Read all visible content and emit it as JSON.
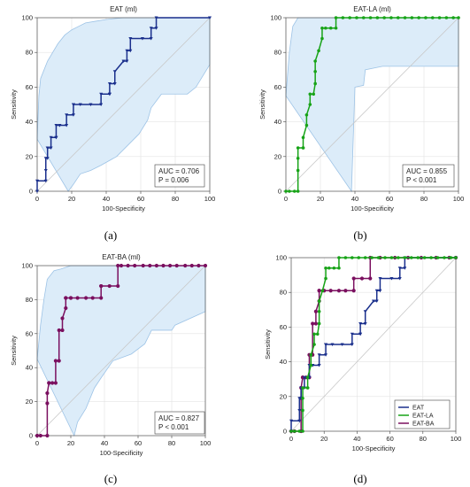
{
  "colors": {
    "eat": "#1a2f8c",
    "eat_la": "#17a317",
    "eat_ba": "#7a0f5f",
    "ci_fill": "#dcecf9",
    "ci_stroke": "#9dc3e6",
    "grid": "#e3e3e3",
    "diagonal": "#c8c8c8"
  },
  "chart_data": [
    {
      "type": "line",
      "panel_label": "(a)",
      "title": "EAT (ml)",
      "xlabel": "100-Specificity",
      "ylabel": "Sensitivity",
      "xlim": [
        0,
        100
      ],
      "ylim": [
        0,
        100
      ],
      "x_ticks": [
        "0",
        "20",
        "40",
        "60",
        "80",
        "100"
      ],
      "y_ticks": [
        "0",
        "20",
        "40",
        "60",
        "80",
        "100"
      ],
      "grid": true,
      "diagonal": true,
      "annotation": [
        "AUC = 0.706",
        "P = 0.006"
      ],
      "series": [
        {
          "key": "eat",
          "x": [
            0,
            0,
            5,
            5,
            5,
            6,
            6,
            6,
            8,
            8,
            11,
            11,
            11,
            13,
            13,
            17,
            17,
            21,
            21,
            21,
            25,
            31,
            37,
            37,
            42,
            42,
            42,
            45,
            45,
            50,
            52,
            52,
            54,
            54,
            61,
            66,
            66,
            69,
            69,
            100
          ],
          "y": [
            0,
            6,
            6,
            12,
            19,
            19,
            25,
            25,
            25,
            31,
            31,
            31,
            38,
            38,
            38,
            38,
            44,
            44,
            50,
            50,
            50,
            50,
            50,
            56,
            56,
            56,
            62,
            62,
            69,
            75,
            75,
            81,
            81,
            88,
            88,
            88,
            94,
            94,
            100,
            100
          ],
          "ci_upper": [
            [
              0,
              30
            ],
            [
              1,
              55
            ],
            [
              2,
              65
            ],
            [
              4,
              70
            ],
            [
              6,
              75
            ],
            [
              9,
              80
            ],
            [
              12,
              85
            ],
            [
              16,
              90
            ],
            [
              20,
              93
            ],
            [
              24,
              95
            ],
            [
              28,
              97
            ],
            [
              34,
              98
            ],
            [
              40,
              99
            ],
            [
              50,
              100
            ],
            [
              100,
              100
            ]
          ],
          "ci_lower": [
            [
              18,
              0
            ],
            [
              21,
              4
            ],
            [
              25,
              10
            ],
            [
              31,
              12
            ],
            [
              37,
              15
            ],
            [
              46,
              20
            ],
            [
              52,
              26
            ],
            [
              59,
              33
            ],
            [
              64,
              41
            ],
            [
              66,
              48
            ],
            [
              72,
              56
            ],
            [
              87,
              56
            ],
            [
              92,
              60
            ],
            [
              100,
              73
            ]
          ]
        }
      ]
    },
    {
      "type": "line",
      "panel_label": "(b)",
      "title": "EAT-LA (ml)",
      "xlabel": "100-Specificity",
      "ylabel": "Sensitivity",
      "xlim": [
        0,
        100
      ],
      "ylim": [
        0,
        100
      ],
      "x_ticks": [
        "0",
        "20",
        "40",
        "60",
        "80",
        "100"
      ],
      "y_ticks": [
        "0",
        "20",
        "40",
        "60",
        "80",
        "100"
      ],
      "grid": true,
      "diagonal": true,
      "annotation": [
        "AUC = 0.855",
        "P < 0.001"
      ],
      "series": [
        {
          "key": "eat_la",
          "x": [
            0,
            2,
            5,
            7,
            7,
            7,
            7,
            10,
            10,
            10,
            12,
            12,
            14,
            14,
            16,
            17,
            17,
            17,
            19,
            21,
            21,
            23,
            26,
            29,
            29,
            33,
            37,
            41,
            45,
            49,
            53,
            57,
            61,
            65,
            69,
            73,
            77,
            81,
            85,
            89,
            93,
            97,
            100
          ],
          "y": [
            0,
            0,
            0,
            0,
            12,
            19,
            25,
            25,
            25,
            31,
            38,
            44,
            50,
            56,
            56,
            62,
            69,
            75,
            81,
            88,
            94,
            94,
            94,
            94,
            100,
            100,
            100,
            100,
            100,
            100,
            100,
            100,
            100,
            100,
            100,
            100,
            100,
            100,
            100,
            100,
            100,
            100,
            100
          ],
          "ci_upper": [
            [
              0,
              55
            ],
            [
              2,
              80
            ],
            [
              4,
              95
            ],
            [
              7,
              100
            ],
            [
              100,
              100
            ]
          ],
          "ci_lower": [
            [
              38,
              0
            ],
            [
              40,
              60
            ],
            [
              45,
              61
            ],
            [
              46,
              70
            ],
            [
              56,
              72
            ],
            [
              100,
              72
            ]
          ]
        }
      ]
    },
    {
      "type": "line",
      "panel_label": "(c)",
      "title": "EAT-BA (ml)",
      "xlabel": "100-Specificity",
      "ylabel": "Sensitivity",
      "xlim": [
        0,
        100
      ],
      "ylim": [
        0,
        100
      ],
      "x_ticks": [
        "0",
        "20",
        "40",
        "60",
        "80",
        "100"
      ],
      "y_ticks": [
        "0",
        "20",
        "40",
        "60",
        "80",
        "100"
      ],
      "grid": true,
      "diagonal": true,
      "annotation": [
        "AUC = 0.827",
        "P < 0.001"
      ],
      "series": [
        {
          "key": "eat_ba",
          "x": [
            0,
            2,
            6,
            6,
            6,
            7,
            7,
            9,
            11,
            11,
            13,
            13,
            15,
            15,
            17,
            17,
            17,
            20,
            20,
            24,
            29,
            33,
            38,
            38,
            38,
            43,
            48,
            48,
            50,
            54,
            58,
            63,
            67,
            71,
            75,
            79,
            83,
            88,
            92,
            96,
            100
          ],
          "y": [
            0,
            0,
            0,
            19,
            25,
            31,
            31,
            31,
            31,
            44,
            44,
            62,
            62,
            69,
            75,
            81,
            81,
            81,
            81,
            81,
            81,
            81,
            81,
            88,
            88,
            88,
            88,
            100,
            100,
            100,
            100,
            100,
            100,
            100,
            100,
            100,
            100,
            100,
            100,
            100,
            100
          ],
          "ci_upper": [
            [
              0,
              45
            ],
            [
              2,
              65
            ],
            [
              4,
              80
            ],
            [
              6,
              92
            ],
            [
              10,
              97
            ],
            [
              14,
              98
            ],
            [
              20,
              100
            ],
            [
              100,
              100
            ]
          ],
          "ci_lower": [
            [
              22,
              0
            ],
            [
              24,
              8
            ],
            [
              29,
              16
            ],
            [
              34,
              28
            ],
            [
              38,
              34
            ],
            [
              45,
              44
            ],
            [
              56,
              48
            ],
            [
              64,
              54
            ],
            [
              68,
              62
            ],
            [
              80,
              62
            ],
            [
              82,
              65
            ],
            [
              100,
              73
            ]
          ]
        }
      ]
    },
    {
      "type": "line",
      "panel_label": "(d)",
      "title": "",
      "xlabel": "100-Specificity",
      "ylabel": "Sensitivity",
      "xlim": [
        0,
        100
      ],
      "ylim": [
        0,
        100
      ],
      "x_ticks": [
        "0",
        "20",
        "40",
        "60",
        "80",
        "100"
      ],
      "y_ticks": [
        "0",
        "20",
        "40",
        "60",
        "80",
        "100"
      ],
      "grid": true,
      "diagonal": true,
      "legend_position": "bottom-right",
      "legend": [
        "EAT",
        "EAT-LA",
        "EAT-BA"
      ],
      "series": [
        {
          "key": "eat_ba",
          "x": [
            0,
            2,
            6,
            6,
            6,
            7,
            7,
            9,
            11,
            11,
            13,
            13,
            15,
            15,
            17,
            17,
            17,
            20,
            24,
            29,
            33,
            38,
            38,
            43,
            48,
            48,
            54,
            63,
            71,
            79,
            88,
            96,
            100
          ],
          "y": [
            0,
            0,
            0,
            19,
            25,
            31,
            31,
            31,
            31,
            44,
            44,
            62,
            62,
            69,
            75,
            81,
            81,
            81,
            81,
            81,
            81,
            81,
            88,
            88,
            88,
            100,
            100,
            100,
            100,
            100,
            100,
            100,
            100
          ]
        },
        {
          "key": "eat",
          "x": [
            0,
            0,
            5,
            5,
            5,
            6,
            6,
            6,
            8,
            8,
            11,
            11,
            11,
            13,
            13,
            17,
            17,
            21,
            21,
            21,
            25,
            31,
            37,
            37,
            42,
            42,
            42,
            45,
            45,
            50,
            52,
            52,
            54,
            54,
            61,
            66,
            66,
            69,
            69,
            100
          ],
          "y": [
            0,
            6,
            6,
            12,
            19,
            19,
            25,
            25,
            25,
            31,
            31,
            31,
            38,
            38,
            38,
            38,
            44,
            44,
            50,
            50,
            50,
            50,
            50,
            56,
            56,
            56,
            62,
            62,
            69,
            75,
            75,
            81,
            81,
            88,
            88,
            88,
            94,
            94,
            100,
            100
          ]
        },
        {
          "key": "eat_la",
          "x": [
            0,
            2,
            5,
            7,
            7,
            7,
            7,
            10,
            10,
            10,
            12,
            12,
            14,
            14,
            16,
            17,
            17,
            17,
            19,
            21,
            21,
            23,
            26,
            29,
            29,
            33,
            37,
            41,
            45,
            49,
            53,
            57,
            61,
            65,
            69,
            73,
            77,
            81,
            85,
            89,
            93,
            97,
            100
          ],
          "y": [
            0,
            0,
            0,
            0,
            12,
            19,
            25,
            25,
            25,
            31,
            38,
            44,
            50,
            56,
            56,
            62,
            69,
            75,
            81,
            88,
            94,
            94,
            94,
            94,
            100,
            100,
            100,
            100,
            100,
            100,
            100,
            100,
            100,
            100,
            100,
            100,
            100,
            100,
            100,
            100,
            100,
            100,
            100
          ]
        }
      ]
    }
  ]
}
